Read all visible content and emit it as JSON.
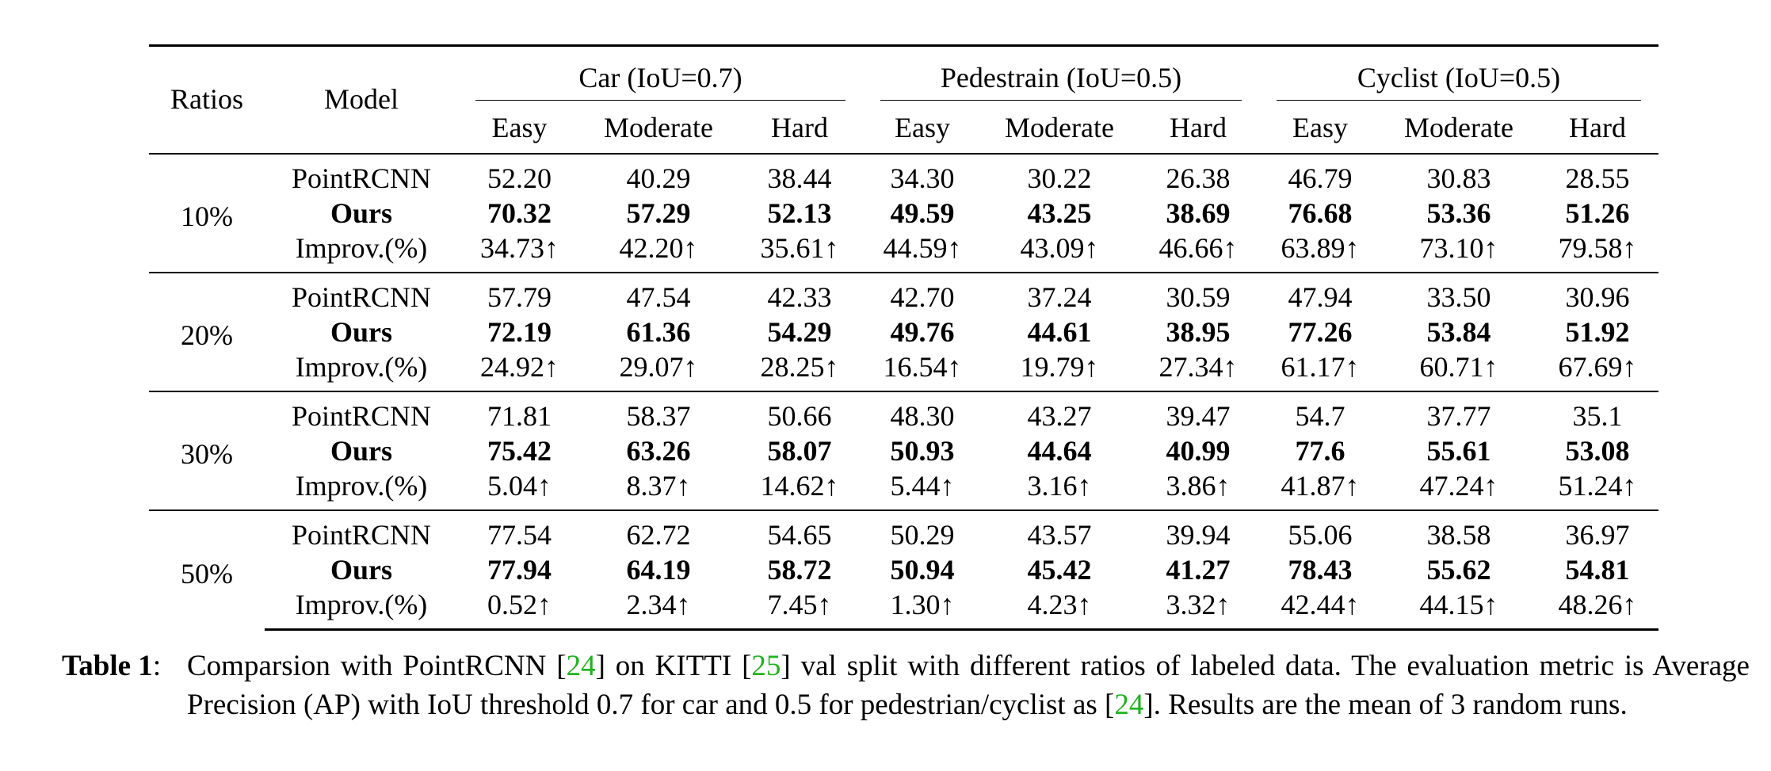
{
  "table": {
    "headers": {
      "ratios": "Ratios",
      "model": "Model",
      "groups": [
        "Car (IoU=0.7)",
        "Pedestrain (IoU=0.5)",
        "Cyclist (IoU=0.5)"
      ],
      "sub": [
        "Easy",
        "Moderate",
        "Hard",
        "Easy",
        "Moderate",
        "Hard",
        "Easy",
        "Moderate",
        "Hard"
      ]
    },
    "rows": [
      {
        "ratio": "10%",
        "baseline": {
          "model": "PointRCNN",
          "values": [
            "52.20",
            "40.29",
            "38.44",
            "34.30",
            "30.22",
            "26.38",
            "46.79",
            "30.83",
            "28.55"
          ]
        },
        "ours": {
          "model": "Ours",
          "values": [
            "70.32",
            "57.29",
            "52.13",
            "49.59",
            "43.25",
            "38.69",
            "76.68",
            "53.36",
            "51.26"
          ]
        },
        "improv": {
          "model": "Improv.(%)",
          "values": [
            "34.73↑",
            "42.20↑",
            "35.61↑",
            "44.59↑",
            "43.09↑",
            "46.66↑",
            "63.89↑",
            "73.10↑",
            "79.58↑"
          ]
        }
      },
      {
        "ratio": "20%",
        "baseline": {
          "model": "PointRCNN",
          "values": [
            "57.79",
            "47.54",
            "42.33",
            "42.70",
            "37.24",
            "30.59",
            "47.94",
            "33.50",
            "30.96"
          ]
        },
        "ours": {
          "model": "Ours",
          "values": [
            "72.19",
            "61.36",
            "54.29",
            "49.76",
            "44.61",
            "38.95",
            "77.26",
            "53.84",
            "51.92"
          ]
        },
        "improv": {
          "model": "Improv.(%)",
          "values": [
            "24.92↑",
            "29.07↑",
            "28.25↑",
            "16.54↑",
            "19.79↑",
            "27.34↑",
            "61.17↑",
            "60.71↑",
            "67.69↑"
          ]
        }
      },
      {
        "ratio": "30%",
        "baseline": {
          "model": "PointRCNN",
          "values": [
            "71.81",
            "58.37",
            "50.66",
            "48.30",
            "43.27",
            "39.47",
            "54.7",
            "37.77",
            "35.1"
          ]
        },
        "ours": {
          "model": "Ours",
          "values": [
            "75.42",
            "63.26",
            "58.07",
            "50.93",
            "44.64",
            "40.99",
            "77.6",
            "55.61",
            "53.08"
          ]
        },
        "improv": {
          "model": "Improv.(%)",
          "values": [
            "5.04↑",
            "8.37↑",
            "14.62↑",
            "5.44↑",
            "3.16↑",
            "3.86↑",
            "41.87↑",
            "47.24↑",
            "51.24↑"
          ]
        }
      },
      {
        "ratio": "50%",
        "baseline": {
          "model": "PointRCNN",
          "values": [
            "77.54",
            "62.72",
            "54.65",
            "50.29",
            "43.57",
            "39.94",
            "55.06",
            "38.58",
            "36.97"
          ]
        },
        "ours": {
          "model": "Ours",
          "values": [
            "77.94",
            "64.19",
            "58.72",
            "50.94",
            "45.42",
            "41.27",
            "78.43",
            "55.62",
            "54.81"
          ]
        },
        "improv": {
          "model": "Improv.(%)",
          "values": [
            "0.52↑",
            "2.34↑",
            "7.45↑",
            "1.30↑",
            "4.23↑",
            "3.32↑",
            "42.44↑",
            "44.15↑",
            "48.26↑"
          ]
        }
      }
    ]
  },
  "caption": {
    "label": "Table 1",
    "sep": ":",
    "t1": " Comparsion with PointRCNN ",
    "c1_open": "[",
    "c1": "24",
    "c1_close": "]",
    "t2": " on KITTI ",
    "c2_open": "[",
    "c2": "25",
    "c2_close": "]",
    "t3": " val split with different ratios of labeled data. The evaluation metric is Average Precision (AP) with IoU threshold 0.7 for car and 0.5 for pedestrian/cyclist as  ",
    "c3_open": "[",
    "c3": "24",
    "c3_close": "]",
    "t4": ". Results are the mean of 3 random runs."
  }
}
